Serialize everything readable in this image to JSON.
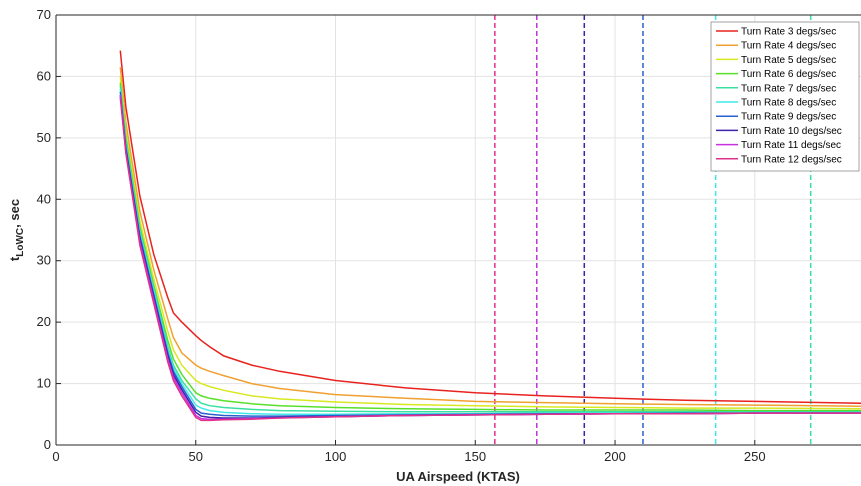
{
  "chart_data": {
    "type": "line",
    "title": "",
    "xlabel": "UA Airspeed (KTAS)",
    "ylabel_main": "t",
    "ylabel_sub": "LoWC",
    "ylabel_tail": ", sec",
    "xlim": [
      0,
      288
    ],
    "ylim": [
      0,
      70
    ],
    "xticks": [
      0,
      50,
      100,
      150,
      200,
      250
    ],
    "yticks": [
      0,
      10,
      20,
      30,
      40,
      50,
      60,
      70
    ],
    "grid": true,
    "legend_position": "top-right",
    "x": [
      23,
      25,
      30,
      35,
      40,
      42,
      45,
      50,
      52,
      55,
      60,
      70,
      80,
      100,
      125,
      150,
      175,
      200,
      225,
      250,
      288
    ],
    "series": [
      {
        "name": "Turn Rate 3 degs/sec",
        "color": "#e8221e",
        "values": [
          64.2,
          55.0,
          40.5,
          31.0,
          24.0,
          21.5,
          20.0,
          17.8,
          17.0,
          16.0,
          14.5,
          13.0,
          12.0,
          10.5,
          9.3,
          8.5,
          8.0,
          7.6,
          7.3,
          7.1,
          6.8
        ]
      },
      {
        "name": "Turn Rate 4 degs/sec",
        "color": "#f0a030",
        "values": [
          61.5,
          52.5,
          38.0,
          28.5,
          20.5,
          17.5,
          15.0,
          13.0,
          12.5,
          12.0,
          11.3,
          10.0,
          9.2,
          8.2,
          7.6,
          7.1,
          6.9,
          6.7,
          6.6,
          6.5,
          6.3
        ]
      },
      {
        "name": "Turn Rate 5 degs/sec",
        "color": "#d8e820",
        "values": [
          60.0,
          51.0,
          36.5,
          27.0,
          18.5,
          15.5,
          13.0,
          10.5,
          10.0,
          9.5,
          8.9,
          8.0,
          7.5,
          7.0,
          6.6,
          6.4,
          6.2,
          6.1,
          6.0,
          6.0,
          5.9
        ]
      },
      {
        "name": "Turn Rate 6 degs/sec",
        "color": "#58e028",
        "values": [
          59.0,
          50.0,
          35.5,
          26.0,
          17.0,
          14.0,
          11.5,
          8.5,
          8.0,
          7.6,
          7.2,
          6.7,
          6.4,
          6.1,
          5.9,
          5.8,
          5.7,
          5.7,
          5.7,
          5.6,
          5.6
        ]
      },
      {
        "name": "Turn Rate 7 degs/sec",
        "color": "#38e0a0",
        "values": [
          58.5,
          49.5,
          35.0,
          25.5,
          16.0,
          13.0,
          10.5,
          7.5,
          6.8,
          6.4,
          6.1,
          5.8,
          5.6,
          5.5,
          5.4,
          5.4,
          5.4,
          5.4,
          5.4,
          5.4,
          5.4
        ]
      },
      {
        "name": "Turn Rate 8 degs/sec",
        "color": "#40e8e8",
        "values": [
          58.0,
          49.0,
          34.5,
          25.0,
          15.5,
          12.5,
          10.0,
          6.5,
          6.0,
          5.6,
          5.3,
          5.1,
          5.0,
          5.0,
          5.1,
          5.1,
          5.2,
          5.2,
          5.2,
          5.2,
          5.2
        ]
      },
      {
        "name": "Turn Rate 9 degs/sec",
        "color": "#2860d0",
        "values": [
          57.5,
          48.5,
          34.0,
          24.5,
          15.0,
          12.0,
          9.5,
          5.8,
          5.2,
          5.0,
          4.8,
          4.7,
          4.7,
          4.8,
          4.9,
          5.0,
          5.1,
          5.1,
          5.2,
          5.2,
          5.2
        ]
      },
      {
        "name": "Turn Rate 10 degs/sec",
        "color": "#4020a8",
        "values": [
          57.0,
          48.0,
          33.5,
          24.0,
          14.5,
          11.5,
          9.0,
          5.3,
          4.7,
          4.5,
          4.4,
          4.4,
          4.5,
          4.6,
          4.8,
          4.9,
          5.0,
          5.1,
          5.1,
          5.2,
          5.2
        ]
      },
      {
        "name": "Turn Rate 11 degs/sec",
        "color": "#c830e0",
        "values": [
          57.0,
          47.5,
          33.0,
          23.5,
          14.0,
          11.0,
          8.5,
          4.8,
          4.3,
          4.2,
          4.2,
          4.3,
          4.4,
          4.6,
          4.8,
          4.9,
          5.0,
          5.1,
          5.1,
          5.2,
          5.2
        ]
      },
      {
        "name": "Turn Rate 12 degs/sec",
        "color": "#e0308a",
        "values": [
          56.5,
          47.5,
          32.5,
          23.0,
          13.5,
          10.5,
          8.0,
          4.5,
          4.0,
          4.0,
          4.1,
          4.2,
          4.4,
          4.6,
          4.8,
          4.9,
          5.0,
          5.1,
          5.1,
          5.2,
          5.2
        ]
      }
    ],
    "vertical_markers": [
      {
        "x": 157,
        "color": "#e0308a"
      },
      {
        "x": 172,
        "color": "#c830e0"
      },
      {
        "x": 189,
        "color": "#4020a8"
      },
      {
        "x": 210,
        "color": "#2860d0"
      },
      {
        "x": 236,
        "color": "#40e8e8"
      },
      {
        "x": 270,
        "color": "#38e0a0"
      }
    ]
  }
}
